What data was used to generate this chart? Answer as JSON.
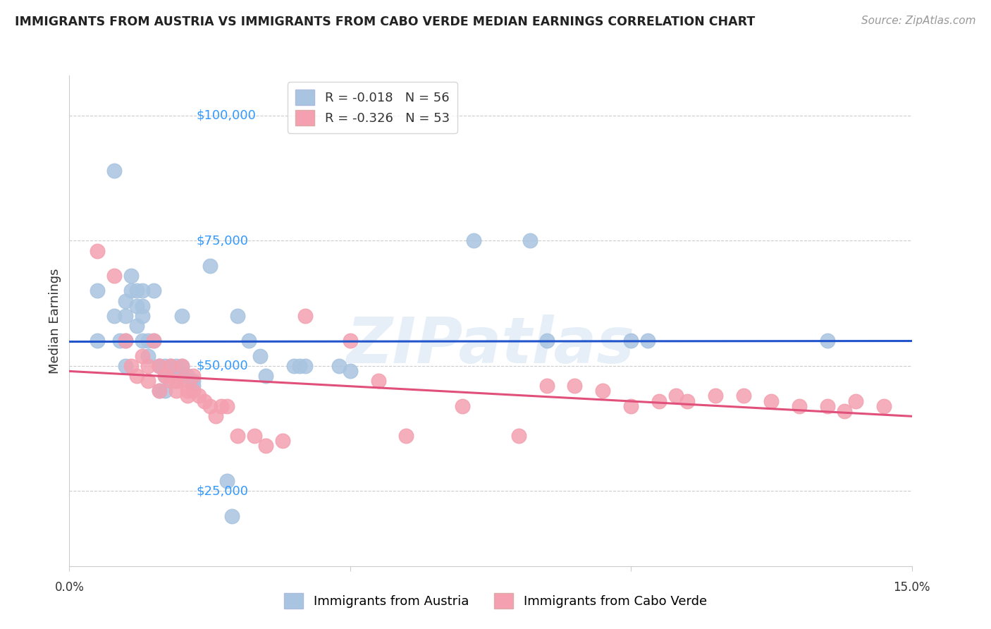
{
  "title": "IMMIGRANTS FROM AUSTRIA VS IMMIGRANTS FROM CABO VERDE MEDIAN EARNINGS CORRELATION CHART",
  "source": "Source: ZipAtlas.com",
  "ylabel": "Median Earnings",
  "yticks": [
    25000,
    50000,
    75000,
    100000
  ],
  "ytick_labels": [
    "$25,000",
    "$50,000",
    "$75,000",
    "$100,000"
  ],
  "xlim": [
    0.0,
    0.15
  ],
  "ylim": [
    10000,
    108000
  ],
  "austria_R": "-0.018",
  "austria_N": "56",
  "caboverde_R": "-0.326",
  "caboverde_N": "53",
  "legend_label_austria": "Immigrants from Austria",
  "legend_label_caboverde": "Immigrants from Cabo Verde",
  "austria_color": "#a8c4e0",
  "caboverde_color": "#f4a0b0",
  "austria_line_color": "#2255cc",
  "caboverde_line_color": "#e0507a",
  "background_color": "#ffffff",
  "watermark": "ZIPatlas",
  "austria_x": [
    0.005,
    0.005,
    0.008,
    0.008,
    0.009,
    0.01,
    0.01,
    0.01,
    0.01,
    0.011,
    0.011,
    0.012,
    0.012,
    0.012,
    0.013,
    0.013,
    0.013,
    0.013,
    0.014,
    0.014,
    0.015,
    0.015,
    0.016,
    0.016,
    0.016,
    0.017,
    0.017,
    0.017,
    0.018,
    0.018,
    0.019,
    0.019,
    0.02,
    0.02,
    0.02,
    0.021,
    0.022,
    0.022,
    0.025,
    0.028,
    0.029,
    0.03,
    0.032,
    0.034,
    0.035,
    0.04,
    0.041,
    0.042,
    0.048,
    0.05,
    0.072,
    0.082,
    0.085,
    0.1,
    0.103,
    0.135
  ],
  "austria_y": [
    55000,
    65000,
    89000,
    60000,
    55000,
    60000,
    63000,
    55000,
    50000,
    68000,
    65000,
    65000,
    62000,
    58000,
    65000,
    62000,
    60000,
    55000,
    55000,
    52000,
    65000,
    55000,
    50000,
    50000,
    45000,
    50000,
    48000,
    45000,
    50000,
    48000,
    50000,
    47000,
    60000,
    50000,
    48000,
    48000,
    47000,
    46000,
    70000,
    27000,
    20000,
    60000,
    55000,
    52000,
    48000,
    50000,
    50000,
    50000,
    50000,
    49000,
    75000,
    75000,
    55000,
    55000,
    55000,
    55000
  ],
  "caboverde_x": [
    0.005,
    0.008,
    0.01,
    0.011,
    0.012,
    0.013,
    0.014,
    0.014,
    0.015,
    0.016,
    0.016,
    0.017,
    0.018,
    0.018,
    0.019,
    0.019,
    0.02,
    0.02,
    0.021,
    0.021,
    0.022,
    0.022,
    0.023,
    0.024,
    0.025,
    0.026,
    0.027,
    0.028,
    0.03,
    0.033,
    0.035,
    0.038,
    0.042,
    0.05,
    0.055,
    0.06,
    0.07,
    0.08,
    0.085,
    0.09,
    0.095,
    0.1,
    0.105,
    0.108,
    0.11,
    0.115,
    0.12,
    0.125,
    0.13,
    0.135,
    0.138,
    0.14,
    0.145
  ],
  "caboverde_y": [
    73000,
    68000,
    55000,
    50000,
    48000,
    52000,
    50000,
    47000,
    55000,
    50000,
    45000,
    48000,
    50000,
    47000,
    47000,
    45000,
    50000,
    47000,
    45000,
    44000,
    48000,
    45000,
    44000,
    43000,
    42000,
    40000,
    42000,
    42000,
    36000,
    36000,
    34000,
    35000,
    60000,
    55000,
    47000,
    36000,
    42000,
    36000,
    46000,
    46000,
    45000,
    42000,
    43000,
    44000,
    43000,
    44000,
    44000,
    43000,
    42000,
    42000,
    41000,
    43000,
    42000
  ]
}
